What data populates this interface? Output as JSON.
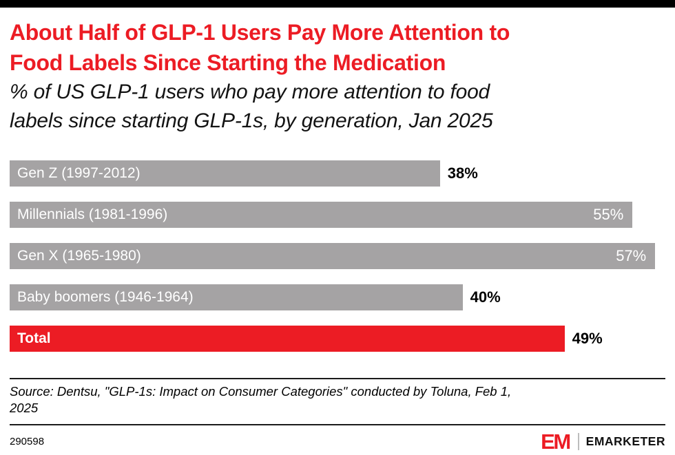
{
  "chart_data": {
    "type": "bar",
    "orientation": "horizontal",
    "title": "About Half of GLP-1 Users Pay More Attention to\nFood Labels Since Starting the Medication",
    "subtitle": "% of US GLP-1 users who pay more attention to food\nlabels since starting GLP-1s, by generation, Jan 2025",
    "categories": [
      "Gen Z (1997-2012)",
      "Millennials (1981-1996)",
      "Gen X (1965-1980)",
      "Baby boomers (1946-1964)",
      "Total"
    ],
    "values": [
      38,
      55,
      57,
      40,
      49
    ],
    "value_labels": [
      "38%",
      "55%",
      "57%",
      "40%",
      "49%"
    ],
    "bar_colors": [
      "#a5a3a4",
      "#a5a3a4",
      "#a5a3a4",
      "#a5a3a4",
      "#ec1c24"
    ],
    "value_inside": [
      false,
      true,
      true,
      false,
      false
    ],
    "label_bold": [
      false,
      false,
      false,
      false,
      true
    ],
    "xlabel": "",
    "ylabel": "",
    "xmax": 57.9,
    "grid": false,
    "legend": false
  },
  "source": "Source: Dentsu, \"GLP-1s: Impact on Consumer Categories\" conducted by Toluna, Feb 1,\n2025",
  "footer": {
    "chart_id": "290598",
    "logo_monogram": "EM",
    "brand_wordmark": "EMARKETER"
  },
  "colors": {
    "accent_red": "#ec1c24",
    "bar_gray": "#a5a3a4",
    "top_bar": "#000000"
  }
}
